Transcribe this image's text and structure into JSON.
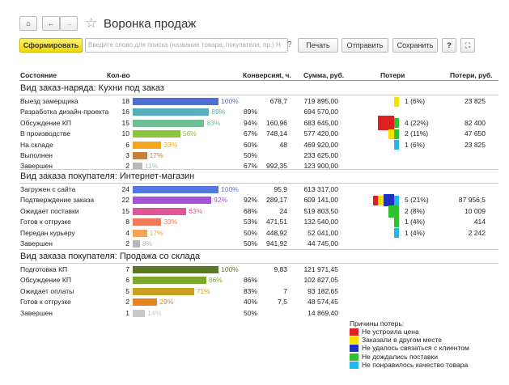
{
  "header": {
    "title": "Воронка продаж"
  },
  "toolbar": {
    "generate": "Сформировать",
    "search_placeholder": "Введите слово для поиска (название товара, покупателя, пр.) Н",
    "help": "?",
    "print": "Печать",
    "send": "Отправить",
    "save": "Сохранить",
    "help2": "?"
  },
  "table": {
    "columns": [
      "Состояние",
      "Кол-во",
      "Конверсия",
      "t, ч.",
      "Сумма, руб.",
      "Потери",
      "Потери, руб."
    ],
    "groups": [
      {
        "title": "Вид заказ-наряда: Кухни под заказ",
        "rows": [
          {
            "state": "Выезд замерщика",
            "count": 18,
            "color": "#4d6fd3",
            "share": "100%",
            "time": "678,7",
            "sum": "719 895,00",
            "losses": "1 (6%)",
            "loss_sum": "23 825",
            "loss_parts": [
              0,
              1,
              0,
              0,
              0
            ]
          },
          {
            "state": "Разработка дизайн-проекта",
            "count": 16,
            "color": "#55aebb",
            "share": "89%",
            "conversion": "89%",
            "sum": "694 570,00"
          },
          {
            "state": "Обсуждение КП",
            "count": 15,
            "color": "#6fbf93",
            "share": "83%",
            "conversion": "94%",
            "time": "160,96",
            "sum": "683 645,00",
            "losses": "4 (22%)",
            "loss_sum": "82 400",
            "loss_parts": [
              3,
              0,
              0,
              1,
              0
            ]
          },
          {
            "state": "В производстве",
            "count": 10,
            "color": "#8cc43f",
            "share": "56%",
            "conversion": "67%",
            "time": "748,14",
            "sum": "577 420,00",
            "losses": "2 (11%)",
            "loss_sum": "47 650",
            "loss_parts": [
              0,
              1,
              0,
              1,
              0
            ]
          },
          {
            "state": "На складе",
            "count": 6,
            "color": "#f3a51e",
            "share": "33%",
            "conversion": "60%",
            "time": "48",
            "sum": "469 920,00",
            "losses": "1 (6%)",
            "loss_sum": "23 825",
            "loss_parts": [
              0,
              0,
              0,
              0,
              1
            ]
          },
          {
            "state": "Выполнен",
            "count": 3,
            "color": "#c2813e",
            "share": "17%",
            "conversion": "50%",
            "sum": "233 625,00"
          },
          {
            "state": "Завершен",
            "count": 2,
            "color": "#b8b8b8",
            "share": "11%",
            "conversion": "67%",
            "time": "992,35",
            "sum": "123 900,00"
          }
        ]
      },
      {
        "title": "Вид заказа покупателя: Интернет-магазин",
        "rows": [
          {
            "state": "Загружен с сайта",
            "count": 24,
            "color": "#5578e0",
            "share": "100%",
            "time": "95,9",
            "sum": "613 317,00"
          },
          {
            "state": "Подтверждение заказа",
            "count": 22,
            "color": "#a553d6",
            "share": "92%",
            "conversion": "92%",
            "time": "289,17",
            "sum": "609 141,00",
            "losses": "5 (21%)",
            "loss_sum": "87 956,5",
            "loss_parts": [
              1,
              1,
              2,
              0,
              1
            ]
          },
          {
            "state": "Ожидает поставки",
            "count": 15,
            "color": "#de5597",
            "share": "63%",
            "conversion": "68%",
            "time": "24",
            "sum": "519 803,50",
            "losses": "2 (8%)",
            "loss_sum": "10 009",
            "loss_parts": [
              0,
              0,
              0,
              2,
              0
            ]
          },
          {
            "state": "Готов к отгрузке",
            "count": 8,
            "color": "#f07a5c",
            "share": "33%",
            "conversion": "53%",
            "time": "471,51",
            "sum": "132 540,00",
            "losses": "1 (4%)",
            "loss_sum": "414",
            "loss_parts": [
              0,
              0,
              0,
              1,
              0
            ]
          },
          {
            "state": "Передан курьеру",
            "count": 4,
            "color": "#f3a455",
            "share": "17%",
            "conversion": "50%",
            "time": "448,92",
            "sum": "52 041,00",
            "losses": "1 (4%)",
            "loss_sum": "2 242",
            "loss_parts": [
              0,
              0,
              0,
              0,
              1
            ]
          },
          {
            "state": "Завершен",
            "count": 2,
            "color": "#b8b8b8",
            "share": "8%",
            "conversion": "50%",
            "time": "941,92",
            "sum": "44 745,00"
          }
        ]
      },
      {
        "title": "Вид заказа покупателя: Продажа со склада",
        "rows": [
          {
            "state": "Подготовка КП",
            "count": 7,
            "color": "#5a7a1f",
            "share": "100%",
            "time": "9,83",
            "sum": "121 971,45"
          },
          {
            "state": "Обсуждение КП",
            "count": 6,
            "color": "#79a82b",
            "share": "86%",
            "conversion": "86%",
            "sum": "102 827,05"
          },
          {
            "state": "Ожидает оплаты",
            "count": 5,
            "color": "#c9a022",
            "share": "71%",
            "conversion": "83%",
            "time": "7",
            "sum": "93 182,65"
          },
          {
            "state": "Готов к отгрузке",
            "count": 2,
            "color": "#e8841f",
            "share": "29%",
            "conversion": "40%",
            "time": "7,5",
            "sum": "48 574,45"
          },
          {
            "state": "Завершен",
            "count": 1,
            "color": "#c8c8c8",
            "share": "14%",
            "conversion": "50%",
            "sum": "14 869,40"
          }
        ]
      }
    ]
  },
  "legend": {
    "title": "Причины потерь:",
    "items": [
      {
        "label": "Не устроила цена",
        "color": "#e02020"
      },
      {
        "label": "Заказали в другом месте",
        "color": "#f5e000"
      },
      {
        "label": "Не удалось связаться с клиентом",
        "color": "#2030c0"
      },
      {
        "label": "Не дождались поставки",
        "color": "#30c030"
      },
      {
        "label": "Не понравилось качество товара",
        "color": "#20b8f0"
      }
    ]
  }
}
